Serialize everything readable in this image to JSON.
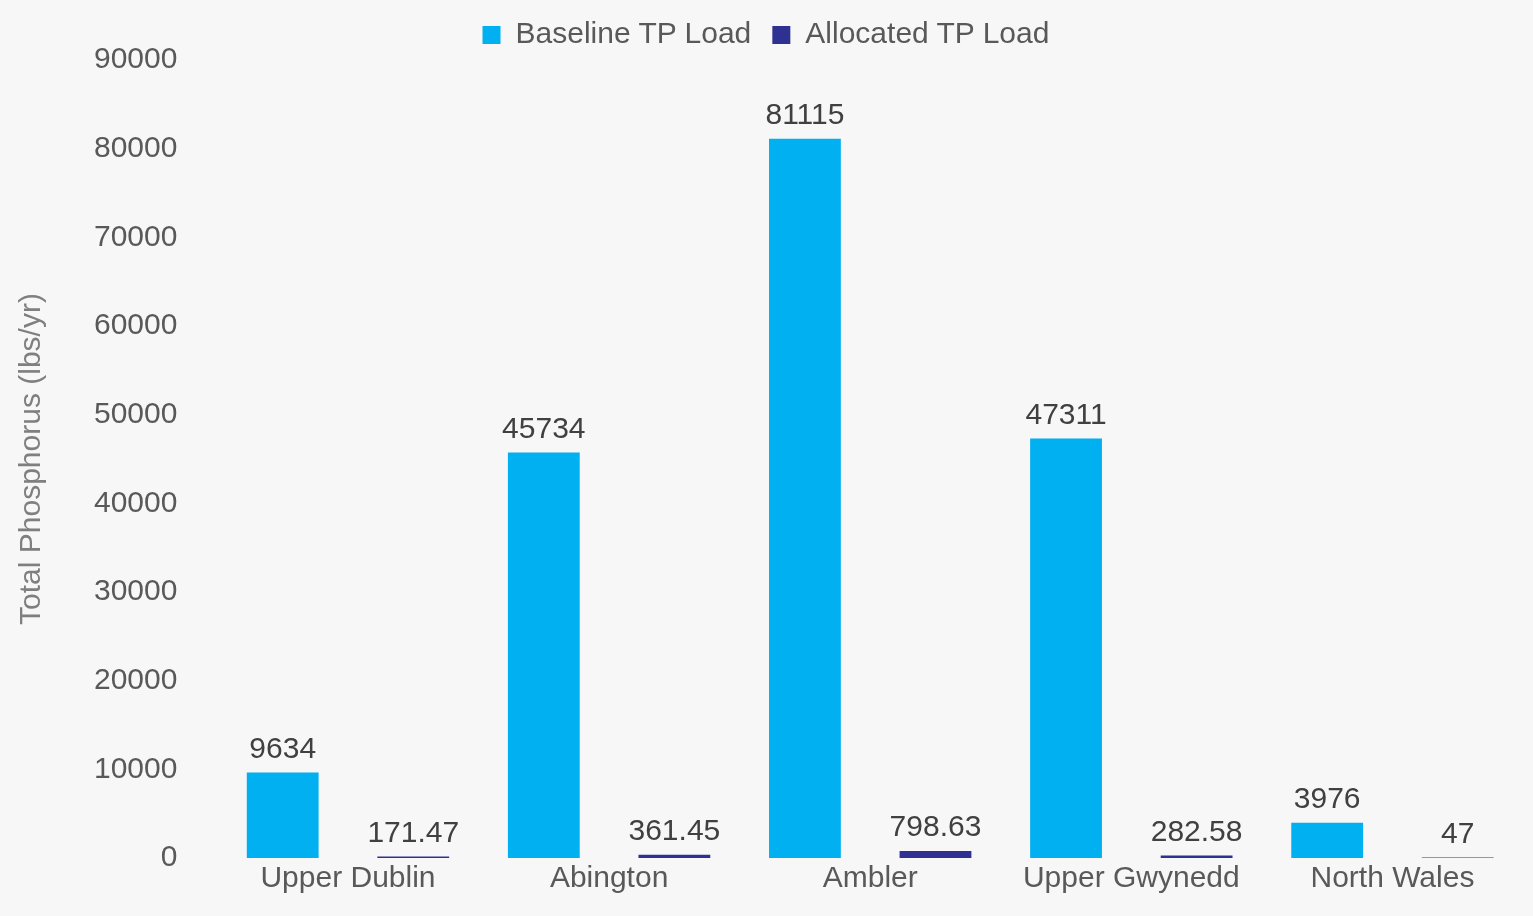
{
  "chart_data": {
    "type": "bar",
    "ylabel": "Total Phosphorus (lbs/yr)",
    "categories": [
      "Upper Dublin",
      "Abington",
      "Ambler",
      "Upper Gwynedd",
      "North Wales"
    ],
    "series": [
      {
        "name": "Baseline TP Load",
        "color": "#00b0f0",
        "values": [
          9634,
          45734,
          81115,
          47311,
          3976
        ]
      },
      {
        "name": "Allocated TP Load",
        "color": "#2e3192",
        "values": [
          171.47,
          361.45,
          798.63,
          282.58,
          47
        ]
      }
    ],
    "ylim": [
      0,
      90000
    ],
    "yticks": [
      0,
      10000,
      20000,
      30000,
      40000,
      50000,
      60000,
      70000,
      80000,
      90000
    ],
    "data_labels": true,
    "legend": "top",
    "grid": false
  }
}
